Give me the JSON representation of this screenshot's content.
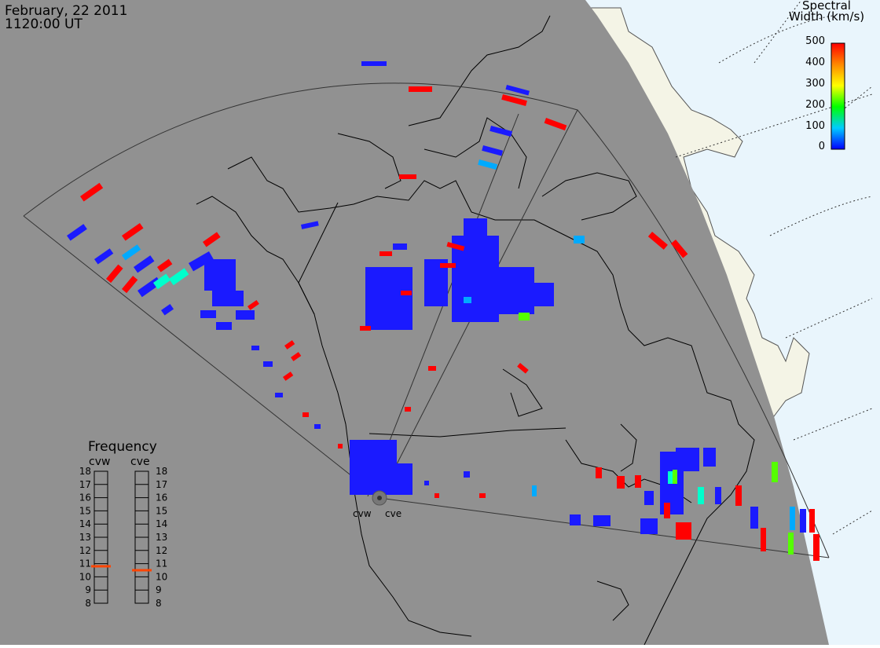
{
  "header": {
    "date": "February, 22 2011",
    "time": "1120:00 UT"
  },
  "colorbar": {
    "title_line1": "Spectral",
    "title_line2": "Width (km/s)",
    "ticks": [
      "500",
      "400",
      "300",
      "200",
      "100",
      "0"
    ],
    "range": [
      0,
      500
    ]
  },
  "radars": [
    {
      "code": "cvw",
      "label": "cvw"
    },
    {
      "code": "cve",
      "label": "cve"
    }
  ],
  "frequency": {
    "title": "Frequency",
    "ticks": [
      "18",
      "17",
      "16",
      "15",
      "14",
      "13",
      "12",
      "11",
      "10",
      "9",
      "8"
    ],
    "range_mhz": [
      8,
      18
    ],
    "current": {
      "cvw": 10.8,
      "cve": 10.5
    }
  },
  "colors": {
    "background": "#919191",
    "night": "#f4f4e6",
    "ocean_day": "#e9f5fc",
    "marker": "#ff4400"
  }
}
